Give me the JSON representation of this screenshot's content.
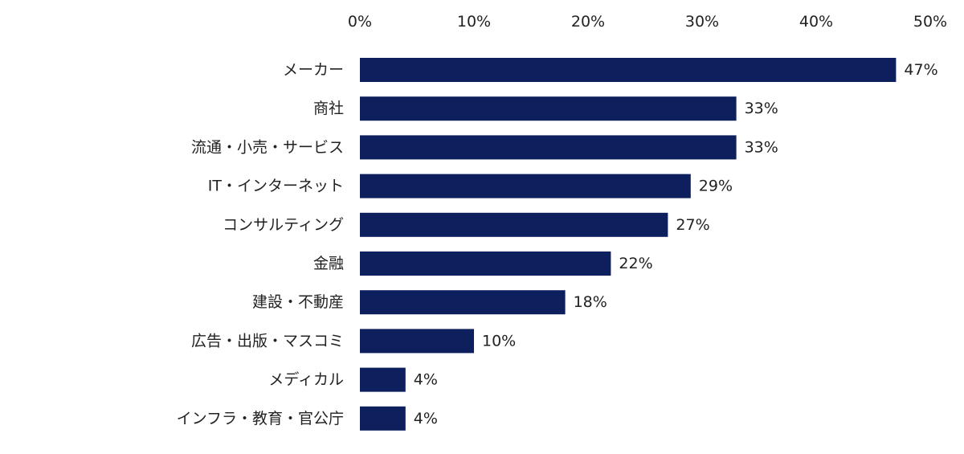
{
  "chart_data": {
    "type": "bar",
    "orientation": "horizontal",
    "categories": [
      "メーカー",
      "商社",
      "流通・小売・サービス",
      "IT・インターネット",
      "コンサルティング",
      "金融",
      "建設・不動産",
      "広告・出版・マスコミ",
      "メディカル",
      "インフラ・教育・官公庁"
    ],
    "values": [
      47,
      33,
      33,
      29,
      27,
      22,
      18,
      10,
      4,
      4
    ],
    "value_labels": [
      "47%",
      "33%",
      "33%",
      "29%",
      "27%",
      "22%",
      "18%",
      "10%",
      "4%",
      "4%"
    ],
    "x_ticks": [
      0,
      10,
      20,
      30,
      40,
      50
    ],
    "x_tick_labels": [
      "0%",
      "10%",
      "20%",
      "30%",
      "40%",
      "50%"
    ],
    "xlim": [
      0,
      50
    ],
    "x_axis_position": "top",
    "grid": false,
    "colors": {
      "bar": "#0d1f5c",
      "text": "#222222"
    }
  }
}
